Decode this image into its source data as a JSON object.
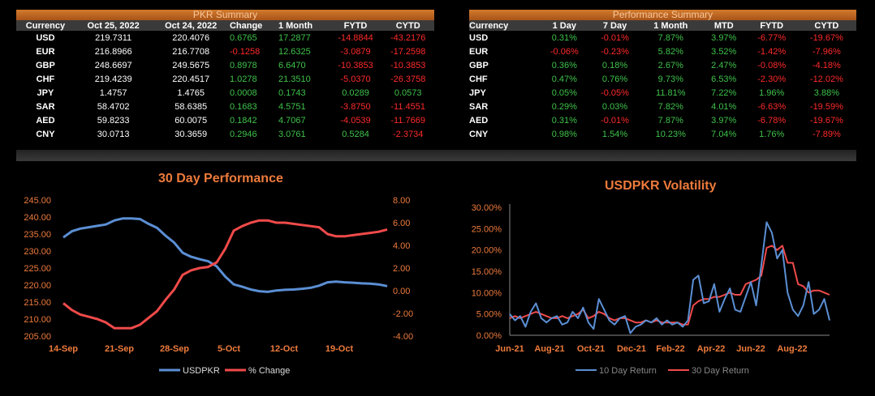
{
  "pkr_summary": {
    "title": "PKR Summary",
    "columns": [
      "Currency",
      "Oct 25, 2022",
      "Oct 24, 2022",
      "Change",
      "1 Month",
      "FYTD",
      "CYTD"
    ],
    "rows": [
      [
        "USD",
        "219.7311",
        "220.4076",
        "0.6765",
        "17.2877",
        "-14.8844",
        "-43.2176"
      ],
      [
        "EUR",
        "216.8966",
        "216.7708",
        "-0.1258",
        "12.6325",
        "-3.0879",
        "-17.2598"
      ],
      [
        "GBP",
        "248.6697",
        "249.5675",
        "0.8978",
        "6.6470",
        "-10.3853",
        "-10.3853"
      ],
      [
        "CHF",
        "219.4239",
        "220.4517",
        "1.0278",
        "21.3510",
        "-5.0370",
        "-26.3758"
      ],
      [
        "JPY",
        "1.4757",
        "1.4765",
        "0.0008",
        "0.1743",
        "0.0289",
        "0.0573"
      ],
      [
        "SAR",
        "58.4702",
        "58.6385",
        "0.1683",
        "4.5751",
        "-3.8750",
        "-11.4551"
      ],
      [
        "AED",
        "59.8233",
        "60.0075",
        "0.1842",
        "4.7067",
        "-4.0539",
        "-11.7669"
      ],
      [
        "CNY",
        "30.0713",
        "30.3659",
        "0.2946",
        "3.0761",
        "0.5284",
        "-2.3734"
      ]
    ]
  },
  "performance_summary": {
    "title": "Performance Summary",
    "columns": [
      "Currency",
      "1 Day",
      "7 Day",
      "1 Month",
      "MTD",
      "FYTD",
      "CYTD"
    ],
    "rows": [
      [
        "USD",
        "0.31%",
        "-0.01%",
        "7.87%",
        "3.97%",
        "-6.77%",
        "-19.67%"
      ],
      [
        "EUR",
        "-0.06%",
        "-0.23%",
        "5.82%",
        "3.52%",
        "-1.42%",
        "-7.96%"
      ],
      [
        "GBP",
        "0.36%",
        "0.18%",
        "2.67%",
        "2.47%",
        "-0.08%",
        "-4.18%"
      ],
      [
        "CHF",
        "0.47%",
        "0.76%",
        "9.73%",
        "6.53%",
        "-2.30%",
        "-12.02%"
      ],
      [
        "JPY",
        "0.05%",
        "-0.05%",
        "11.81%",
        "7.22%",
        "1.96%",
        "3.88%"
      ],
      [
        "SAR",
        "0.29%",
        "0.03%",
        "7.82%",
        "4.01%",
        "-6.63%",
        "-19.59%"
      ],
      [
        "AED",
        "0.31%",
        "-0.01%",
        "7.87%",
        "3.97%",
        "-6.78%",
        "-19.67%"
      ],
      [
        "CNY",
        "0.98%",
        "1.54%",
        "10.23%",
        "7.04%",
        "1.76%",
        "-7.89%"
      ]
    ]
  },
  "colors": {
    "positive": "#3fc24a",
    "negative": "#ff2a2a",
    "accent": "#ee7b3c",
    "blue": "#5b8fd4",
    "red": "#f04a4a"
  },
  "chart_data": [
    {
      "type": "line",
      "title": "30 Day Performance",
      "x_ticks": [
        "14-Sep",
        "21-Sep",
        "28-Sep",
        "5-Oct",
        "12-Oct",
        "19-Oct"
      ],
      "y_left": {
        "ticks": [
          "245.00",
          "240.00",
          "235.00",
          "230.00",
          "225.00",
          "220.00",
          "215.00",
          "210.00",
          "205.00"
        ],
        "lim": [
          205,
          245
        ]
      },
      "y_right": {
        "ticks": [
          "8.00",
          "6.00",
          "4.00",
          "2.00",
          "0.00",
          "-2.00",
          "-4.00"
        ],
        "lim": [
          -4,
          8
        ]
      },
      "series": [
        {
          "name": "USDPKR",
          "axis": "left",
          "color": "#5b8fd4",
          "values": [
            234.0,
            235.8,
            236.6,
            237.0,
            237.4,
            237.8,
            239.0,
            239.6,
            239.6,
            239.4,
            238.0,
            236.8,
            234.5,
            232.5,
            229.5,
            228.3,
            227.6,
            227.0,
            225.5,
            222.5,
            220.2,
            219.5,
            218.7,
            218.2,
            218.0,
            218.4,
            218.6,
            218.7,
            218.9,
            219.2,
            219.8,
            220.8,
            221.0,
            220.8,
            220.7,
            220.5,
            220.4,
            220.2,
            219.7
          ]
        },
        {
          "name": "% Change",
          "axis": "right",
          "color": "#f04a4a",
          "values": [
            -1.1,
            -1.7,
            -2.1,
            -2.3,
            -2.5,
            -2.8,
            -3.3,
            -3.3,
            -3.3,
            -3.0,
            -2.4,
            -1.8,
            -0.8,
            0.1,
            1.4,
            1.8,
            2.0,
            2.1,
            2.5,
            3.7,
            5.3,
            5.7,
            6.0,
            6.2,
            6.2,
            6.0,
            6.0,
            5.9,
            5.8,
            5.7,
            5.6,
            5.0,
            4.8,
            4.8,
            4.9,
            5.0,
            5.1,
            5.2,
            5.4
          ]
        }
      ]
    },
    {
      "type": "line",
      "title": "USDPKR Volatility",
      "x_ticks": [
        "Jun-21",
        "Aug-21",
        "Oct-21",
        "Dec-21",
        "Feb-22",
        "Apr-22",
        "Jun-22",
        "Aug-22"
      ],
      "y": {
        "ticks": [
          "30.00%",
          "25.00%",
          "20.00%",
          "15.00%",
          "10.00%",
          "5.00%",
          "0.00%"
        ],
        "lim": [
          0,
          30
        ]
      },
      "series": [
        {
          "name": "10 Day Return",
          "color": "#5b8fd4",
          "values": [
            5.0,
            3.5,
            4.5,
            2.0,
            5.5,
            7.5,
            4.0,
            3.0,
            4.0,
            4.5,
            2.5,
            3.0,
            5.5,
            4.0,
            6.5,
            3.0,
            1.5,
            8.5,
            6.0,
            3.5,
            2.5,
            4.0,
            4.5,
            0.5,
            2.0,
            2.5,
            3.5,
            3.0,
            4.0,
            2.5,
            3.5,
            2.5,
            3.0,
            2.0,
            3.5,
            13.0,
            14.0,
            7.5,
            8.0,
            12.0,
            5.5,
            8.5,
            11.0,
            6.0,
            5.5,
            9.0,
            12.5,
            7.0,
            16.5,
            26.5,
            24.0,
            18.0,
            20.0,
            10.0,
            6.0,
            4.5,
            7.0,
            12.5,
            5.0,
            6.0,
            8.5,
            3.5
          ]
        },
        {
          "name": "30 Day Return",
          "color": "#f04a4a",
          "values": [
            4.0,
            4.5,
            4.0,
            4.5,
            5.0,
            5.5,
            5.0,
            4.5,
            4.0,
            4.0,
            4.5,
            4.0,
            4.5,
            5.0,
            6.0,
            4.0,
            4.5,
            5.5,
            5.0,
            4.0,
            3.5,
            4.0,
            4.0,
            3.5,
            3.0,
            3.0,
            3.5,
            3.0,
            3.5,
            3.0,
            3.0,
            3.0,
            3.0,
            2.5,
            2.5,
            7.0,
            8.0,
            8.5,
            8.5,
            9.0,
            9.0,
            9.5,
            10.0,
            9.5,
            9.5,
            12.0,
            12.5,
            13.0,
            14.0,
            20.5,
            21.0,
            20.0,
            21.0,
            17.0,
            17.0,
            12.0,
            11.5,
            10.0,
            10.5,
            10.5,
            10.0,
            9.5
          ]
        }
      ]
    }
  ]
}
